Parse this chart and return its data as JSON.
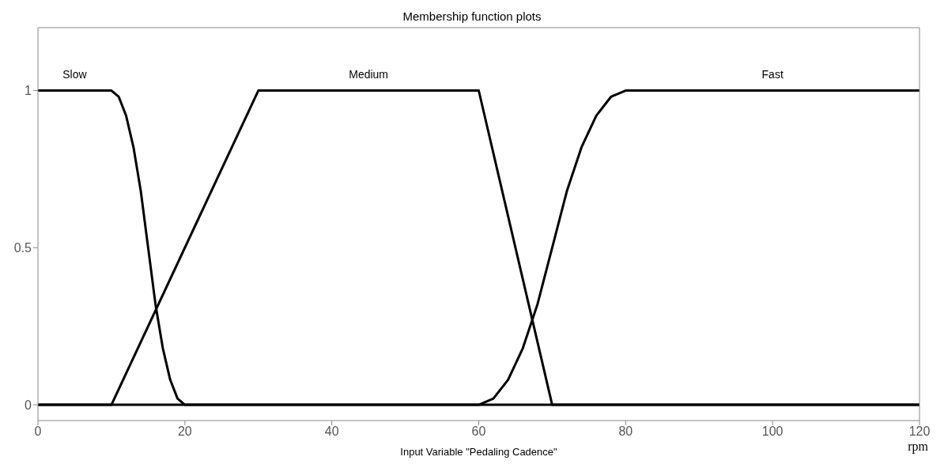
{
  "chart_data": {
    "type": "line",
    "title": "Membership function plots",
    "xlabel": "Input Variable \"Pedaling Cadence\"",
    "annotations": [
      "rpm"
    ],
    "xlim": [
      0,
      120
    ],
    "xticks": [
      0,
      20,
      40,
      60,
      80,
      100,
      120
    ],
    "ylim": [
      -0.05,
      1.2
    ],
    "yticks": [
      0,
      0.5,
      1
    ],
    "line_style": "solid",
    "series": [
      {
        "name": "Slow",
        "color": "#000000",
        "x": [
          0,
          10,
          11,
          12,
          13,
          14,
          15,
          16,
          17,
          18,
          19,
          20,
          120
        ],
        "values": [
          1,
          1,
          0.98,
          0.92,
          0.82,
          0.68,
          0.5,
          0.32,
          0.18,
          0.08,
          0.02,
          0,
          0
        ]
      },
      {
        "name": "Medium",
        "color": "#000000",
        "x": [
          0,
          10,
          30,
          60,
          70,
          120
        ],
        "values": [
          0,
          0,
          1,
          1,
          0,
          0
        ]
      },
      {
        "name": "Fast",
        "color": "#000000",
        "x": [
          0,
          60,
          62,
          64,
          66,
          68,
          70,
          72,
          74,
          76,
          78,
          80,
          120
        ],
        "values": [
          0,
          0,
          0.02,
          0.08,
          0.18,
          0.32,
          0.5,
          0.68,
          0.82,
          0.92,
          0.98,
          1,
          1
        ]
      }
    ]
  }
}
